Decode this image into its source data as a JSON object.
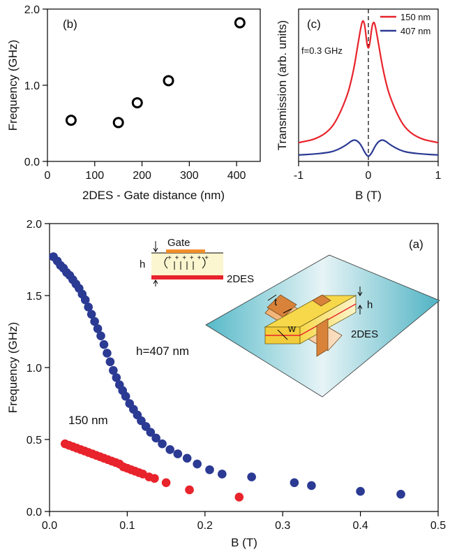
{
  "chart_data": [
    {
      "id": "b",
      "type": "scatter",
      "panel_label": "(b)",
      "xlabel": "2DES - Gate distance (nm)",
      "ylabel": "Frequency (GHz)",
      "xlim": [
        0,
        450
      ],
      "ylim": [
        0,
        2.0
      ],
      "x_ticks": [
        0,
        100,
        200,
        300,
        400
      ],
      "x_tick_labels": [
        "0",
        "100",
        "200",
        "300",
        "400"
      ],
      "y_ticks": [
        0,
        1.0,
        2.0
      ],
      "y_tick_labels": [
        "0.0",
        "1.0",
        "2.0"
      ],
      "marker": "open-circle",
      "points": [
        {
          "x": 50,
          "y": 0.54
        },
        {
          "x": 150,
          "y": 0.51
        },
        {
          "x": 190,
          "y": 0.77
        },
        {
          "x": 256,
          "y": 1.06
        },
        {
          "x": 407,
          "y": 1.82
        }
      ]
    },
    {
      "id": "c",
      "type": "line",
      "panel_label": "(c)",
      "annotation": "f=0.3 GHz",
      "xlabel": "B (T)",
      "ylabel": "Transmission (arb. units)",
      "xlim": [
        -1,
        1
      ],
      "ylim": [
        0,
        1
      ],
      "x_ticks": [
        -1,
        0,
        1
      ],
      "x_tick_labels": [
        "-1",
        "0",
        "1"
      ],
      "vertical_dashed_line_at": 0,
      "legend_position": "top-right",
      "series": [
        {
          "name": "150 nm",
          "color": "#e8232b",
          "x": [
            -1.0,
            -0.9,
            -0.8,
            -0.7,
            -0.6,
            -0.5,
            -0.4,
            -0.3,
            -0.25,
            -0.2,
            -0.15,
            -0.1,
            -0.075,
            -0.05,
            -0.03,
            -0.015,
            0,
            0.015,
            0.03,
            0.05,
            0.075,
            0.1,
            0.15,
            0.2,
            0.25,
            0.3,
            0.4,
            0.5,
            0.6,
            0.7,
            0.8,
            0.9,
            1.0
          ],
          "y": [
            0.12,
            0.13,
            0.14,
            0.16,
            0.19,
            0.24,
            0.33,
            0.45,
            0.54,
            0.65,
            0.8,
            0.94,
            0.97,
            0.93,
            0.84,
            0.79,
            0.77,
            0.79,
            0.84,
            0.92,
            0.96,
            0.93,
            0.79,
            0.65,
            0.54,
            0.45,
            0.33,
            0.24,
            0.19,
            0.16,
            0.14,
            0.13,
            0.12
          ]
        },
        {
          "name": "407 nm",
          "color": "#2b3a93",
          "x": [
            -1.0,
            -0.8,
            -0.6,
            -0.5,
            -0.4,
            -0.3,
            -0.25,
            -0.2,
            -0.15,
            -0.1,
            -0.05,
            0,
            0.05,
            0.1,
            0.15,
            0.2,
            0.25,
            0.3,
            0.4,
            0.5,
            0.6,
            0.8,
            1.0
          ],
          "y": [
            0.035,
            0.04,
            0.05,
            0.06,
            0.08,
            0.11,
            0.13,
            0.14,
            0.13,
            0.1,
            0.05,
            0.02,
            0.05,
            0.1,
            0.13,
            0.14,
            0.13,
            0.11,
            0.08,
            0.06,
            0.05,
            0.04,
            0.035
          ]
        }
      ]
    },
    {
      "id": "a",
      "type": "scatter",
      "panel_label": "(a)",
      "xlabel": "B (T)",
      "ylabel": "Frequency (GHz)",
      "xlim": [
        0,
        0.5
      ],
      "ylim": [
        0,
        2.0
      ],
      "x_ticks": [
        0,
        0.1,
        0.2,
        0.3,
        0.4,
        0.5
      ],
      "x_tick_labels": [
        "0.0",
        "0.1",
        "0.2",
        "0.3",
        "0.4",
        "0.5"
      ],
      "y_ticks": [
        0,
        0.5,
        1.0,
        1.5,
        2.0
      ],
      "y_tick_labels": [
        "0.0",
        "0.5",
        "1.0",
        "1.5",
        "2.0"
      ],
      "series": [
        {
          "label": "h=407 nm",
          "color": "#2b3a93",
          "x": [
            0.005,
            0.01,
            0.014,
            0.018,
            0.022,
            0.026,
            0.03,
            0.034,
            0.038,
            0.042,
            0.046,
            0.05,
            0.054,
            0.058,
            0.062,
            0.066,
            0.07,
            0.074,
            0.078,
            0.082,
            0.086,
            0.09,
            0.094,
            0.098,
            0.103,
            0.108,
            0.113,
            0.118,
            0.124,
            0.13,
            0.137,
            0.145,
            0.155,
            0.165,
            0.177,
            0.19,
            0.206,
            0.222,
            0.26,
            0.315,
            0.337,
            0.4,
            0.452
          ],
          "y": [
            1.77,
            1.74,
            1.71,
            1.69,
            1.66,
            1.64,
            1.61,
            1.58,
            1.55,
            1.51,
            1.47,
            1.42,
            1.37,
            1.32,
            1.27,
            1.22,
            1.16,
            1.1,
            1.04,
            0.98,
            0.93,
            0.88,
            0.84,
            0.8,
            0.75,
            0.71,
            0.67,
            0.63,
            0.59,
            0.55,
            0.51,
            0.47,
            0.43,
            0.4,
            0.37,
            0.33,
            0.29,
            0.26,
            0.24,
            0.2,
            0.18,
            0.14,
            0.12
          ]
        },
        {
          "label": "150 nm",
          "color": "#e8232b",
          "x": [
            0.02,
            0.025,
            0.03,
            0.035,
            0.04,
            0.045,
            0.05,
            0.055,
            0.06,
            0.065,
            0.07,
            0.075,
            0.08,
            0.085,
            0.09,
            0.095,
            0.1,
            0.105,
            0.11,
            0.115,
            0.12,
            0.128,
            0.135,
            0.15,
            0.18,
            0.244
          ],
          "y": [
            0.47,
            0.46,
            0.45,
            0.44,
            0.43,
            0.42,
            0.41,
            0.4,
            0.39,
            0.38,
            0.37,
            0.36,
            0.35,
            0.34,
            0.33,
            0.31,
            0.3,
            0.29,
            0.28,
            0.27,
            0.26,
            0.24,
            0.23,
            0.2,
            0.15,
            0.1
          ]
        }
      ]
    }
  ],
  "inset_gate": {
    "gate_label": "Gate",
    "h_label": "h",
    "twodes_label": "2DES",
    "charge_signs": "+ + + + + +",
    "gate_color": "#f28e2b",
    "twodes_color": "#e8232b",
    "dielectric_color": "#fbf6cf"
  },
  "inset_device": {
    "t_label": "t",
    "w_label": "w",
    "h_label": "h",
    "twodes_label": "2DES",
    "substrate_color": "#4fb6c6",
    "gate_color": "#d8823a",
    "mesa_color": "#f2cc3a"
  }
}
